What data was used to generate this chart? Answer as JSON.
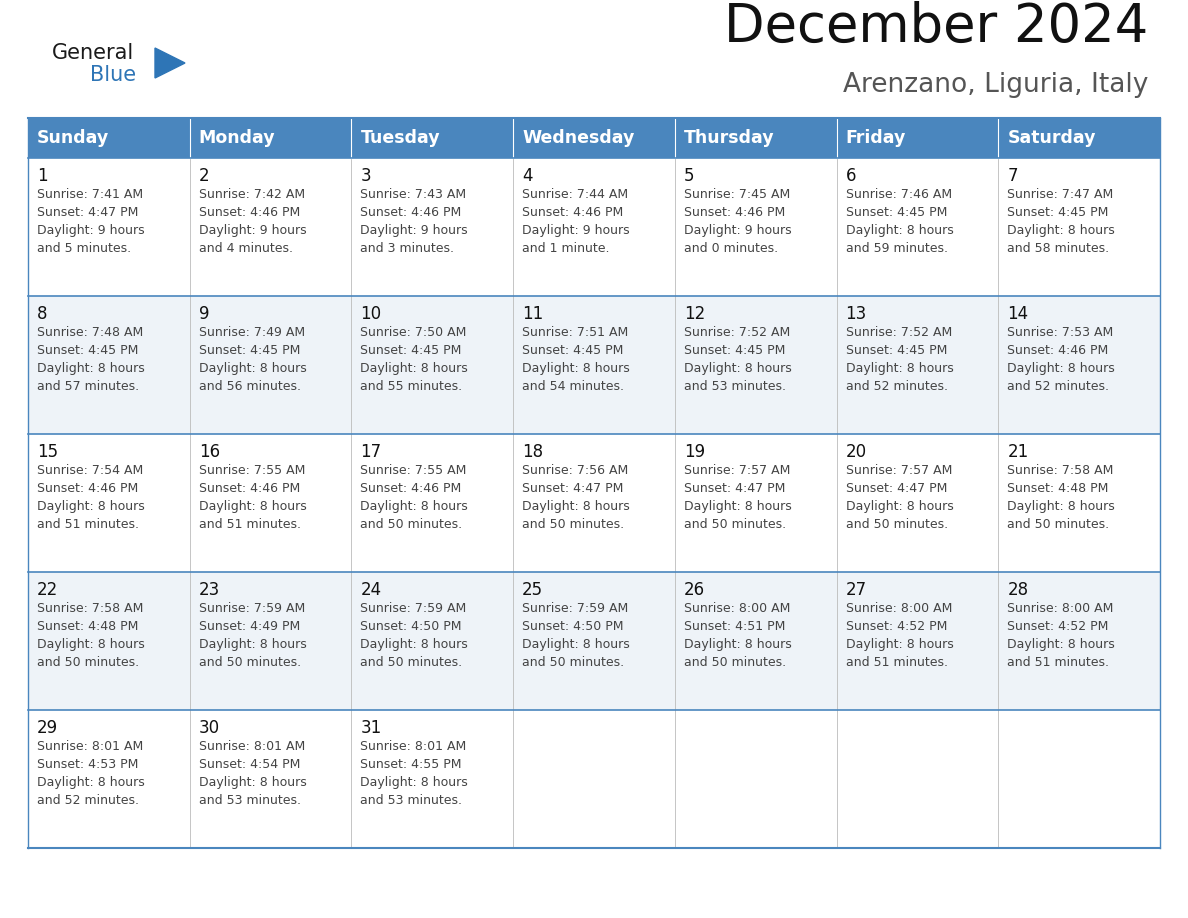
{
  "title": "December 2024",
  "subtitle": "Arenzano, Liguria, Italy",
  "days_of_week": [
    "Sunday",
    "Monday",
    "Tuesday",
    "Wednesday",
    "Thursday",
    "Friday",
    "Saturday"
  ],
  "header_bg_color": "#4A86BE",
  "header_text_color": "#FFFFFF",
  "row_line_color": "#4A86BE",
  "text_color": "#444444",
  "calendar_data": [
    [
      {
        "day": "1",
        "sunrise": "7:41 AM",
        "sunset": "4:47 PM",
        "daylight_h": "9 hours",
        "daylight_m": "and 5 minutes."
      },
      {
        "day": "2",
        "sunrise": "7:42 AM",
        "sunset": "4:46 PM",
        "daylight_h": "9 hours",
        "daylight_m": "and 4 minutes."
      },
      {
        "day": "3",
        "sunrise": "7:43 AM",
        "sunset": "4:46 PM",
        "daylight_h": "9 hours",
        "daylight_m": "and 3 minutes."
      },
      {
        "day": "4",
        "sunrise": "7:44 AM",
        "sunset": "4:46 PM",
        "daylight_h": "9 hours",
        "daylight_m": "and 1 minute."
      },
      {
        "day": "5",
        "sunrise": "7:45 AM",
        "sunset": "4:46 PM",
        "daylight_h": "9 hours",
        "daylight_m": "and 0 minutes."
      },
      {
        "day": "6",
        "sunrise": "7:46 AM",
        "sunset": "4:45 PM",
        "daylight_h": "8 hours",
        "daylight_m": "and 59 minutes."
      },
      {
        "day": "7",
        "sunrise": "7:47 AM",
        "sunset": "4:45 PM",
        "daylight_h": "8 hours",
        "daylight_m": "and 58 minutes."
      }
    ],
    [
      {
        "day": "8",
        "sunrise": "7:48 AM",
        "sunset": "4:45 PM",
        "daylight_h": "8 hours",
        "daylight_m": "and 57 minutes."
      },
      {
        "day": "9",
        "sunrise": "7:49 AM",
        "sunset": "4:45 PM",
        "daylight_h": "8 hours",
        "daylight_m": "and 56 minutes."
      },
      {
        "day": "10",
        "sunrise": "7:50 AM",
        "sunset": "4:45 PM",
        "daylight_h": "8 hours",
        "daylight_m": "and 55 minutes."
      },
      {
        "day": "11",
        "sunrise": "7:51 AM",
        "sunset": "4:45 PM",
        "daylight_h": "8 hours",
        "daylight_m": "and 54 minutes."
      },
      {
        "day": "12",
        "sunrise": "7:52 AM",
        "sunset": "4:45 PM",
        "daylight_h": "8 hours",
        "daylight_m": "and 53 minutes."
      },
      {
        "day": "13",
        "sunrise": "7:52 AM",
        "sunset": "4:45 PM",
        "daylight_h": "8 hours",
        "daylight_m": "and 52 minutes."
      },
      {
        "day": "14",
        "sunrise": "7:53 AM",
        "sunset": "4:46 PM",
        "daylight_h": "8 hours",
        "daylight_m": "and 52 minutes."
      }
    ],
    [
      {
        "day": "15",
        "sunrise": "7:54 AM",
        "sunset": "4:46 PM",
        "daylight_h": "8 hours",
        "daylight_m": "and 51 minutes."
      },
      {
        "day": "16",
        "sunrise": "7:55 AM",
        "sunset": "4:46 PM",
        "daylight_h": "8 hours",
        "daylight_m": "and 51 minutes."
      },
      {
        "day": "17",
        "sunrise": "7:55 AM",
        "sunset": "4:46 PM",
        "daylight_h": "8 hours",
        "daylight_m": "and 50 minutes."
      },
      {
        "day": "18",
        "sunrise": "7:56 AM",
        "sunset": "4:47 PM",
        "daylight_h": "8 hours",
        "daylight_m": "and 50 minutes."
      },
      {
        "day": "19",
        "sunrise": "7:57 AM",
        "sunset": "4:47 PM",
        "daylight_h": "8 hours",
        "daylight_m": "and 50 minutes."
      },
      {
        "day": "20",
        "sunrise": "7:57 AM",
        "sunset": "4:47 PM",
        "daylight_h": "8 hours",
        "daylight_m": "and 50 minutes."
      },
      {
        "day": "21",
        "sunrise": "7:58 AM",
        "sunset": "4:48 PM",
        "daylight_h": "8 hours",
        "daylight_m": "and 50 minutes."
      }
    ],
    [
      {
        "day": "22",
        "sunrise": "7:58 AM",
        "sunset": "4:48 PM",
        "daylight_h": "8 hours",
        "daylight_m": "and 50 minutes."
      },
      {
        "day": "23",
        "sunrise": "7:59 AM",
        "sunset": "4:49 PM",
        "daylight_h": "8 hours",
        "daylight_m": "and 50 minutes."
      },
      {
        "day": "24",
        "sunrise": "7:59 AM",
        "sunset": "4:50 PM",
        "daylight_h": "8 hours",
        "daylight_m": "and 50 minutes."
      },
      {
        "day": "25",
        "sunrise": "7:59 AM",
        "sunset": "4:50 PM",
        "daylight_h": "8 hours",
        "daylight_m": "and 50 minutes."
      },
      {
        "day": "26",
        "sunrise": "8:00 AM",
        "sunset": "4:51 PM",
        "daylight_h": "8 hours",
        "daylight_m": "and 50 minutes."
      },
      {
        "day": "27",
        "sunrise": "8:00 AM",
        "sunset": "4:52 PM",
        "daylight_h": "8 hours",
        "daylight_m": "and 51 minutes."
      },
      {
        "day": "28",
        "sunrise": "8:00 AM",
        "sunset": "4:52 PM",
        "daylight_h": "8 hours",
        "daylight_m": "and 51 minutes."
      }
    ],
    [
      {
        "day": "29",
        "sunrise": "8:01 AM",
        "sunset": "4:53 PM",
        "daylight_h": "8 hours",
        "daylight_m": "and 52 minutes."
      },
      {
        "day": "30",
        "sunrise": "8:01 AM",
        "sunset": "4:54 PM",
        "daylight_h": "8 hours",
        "daylight_m": "and 53 minutes."
      },
      {
        "day": "31",
        "sunrise": "8:01 AM",
        "sunset": "4:55 PM",
        "daylight_h": "8 hours",
        "daylight_m": "and 53 minutes."
      },
      null,
      null,
      null,
      null
    ]
  ]
}
